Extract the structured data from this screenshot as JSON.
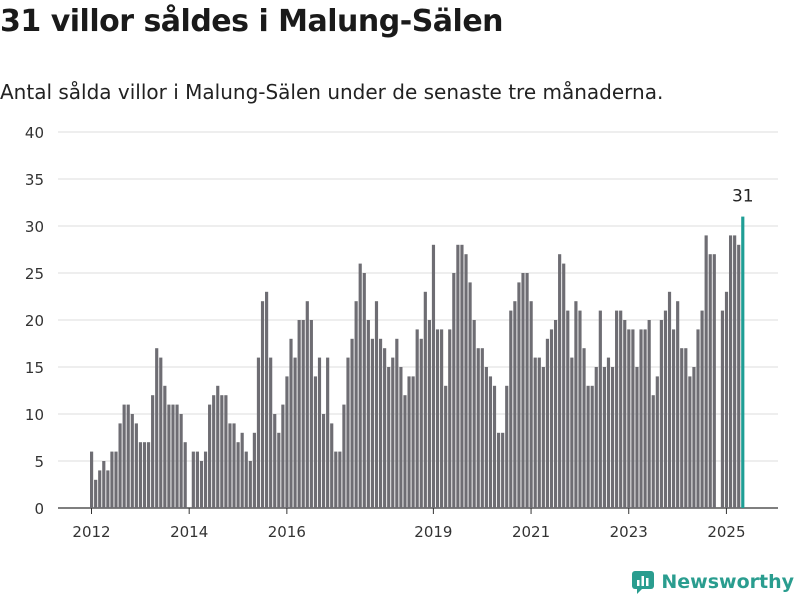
{
  "header": {
    "title": "31 villor såldes i Malung-Sälen",
    "subtitle": "Antal sålda villor i Malung-Sälen under de senaste tre månaderna."
  },
  "brand": {
    "name": "Newsworthy",
    "color": "#2a9d8f"
  },
  "colors": {
    "bar": "#6e6d73",
    "highlight": "#1f9e95",
    "grid": "#dddddd",
    "axis": "#333333"
  },
  "chart_data": {
    "type": "bar",
    "title": "31 villor såldes i Malung-Sälen",
    "subtitle": "Antal sålda villor i Malung-Sälen under de senaste tre månaderna.",
    "xlabel": "",
    "ylabel": "",
    "ylim": [
      0,
      40
    ],
    "yticks": [
      0,
      5,
      10,
      15,
      20,
      25,
      30,
      35,
      40
    ],
    "grid": true,
    "x_start": "2012-01",
    "frequency": "monthly",
    "xticks": [
      {
        "label": "2012",
        "month": "2012-01"
      },
      {
        "label": "2014",
        "month": "2014-01"
      },
      {
        "label": "2016",
        "month": "2016-01"
      },
      {
        "label": "2019",
        "month": "2019-01"
      },
      {
        "label": "2021",
        "month": "2021-01"
      },
      {
        "label": "2023",
        "month": "2023-01"
      },
      {
        "label": "2025",
        "month": "2025-01"
      }
    ],
    "values": [
      6,
      3,
      4,
      5,
      4,
      6,
      6,
      9,
      11,
      11,
      10,
      9,
      7,
      7,
      7,
      12,
      17,
      16,
      13,
      11,
      11,
      11,
      10,
      7,
      0,
      6,
      6,
      5,
      6,
      11,
      12,
      13,
      12,
      12,
      9,
      9,
      7,
      8,
      6,
      5,
      8,
      16,
      22,
      23,
      16,
      10,
      8,
      11,
      14,
      18,
      16,
      20,
      20,
      22,
      20,
      14,
      16,
      10,
      16,
      9,
      6,
      6,
      11,
      16,
      18,
      22,
      26,
      25,
      20,
      18,
      22,
      18,
      17,
      15,
      16,
      18,
      15,
      12,
      14,
      14,
      19,
      18,
      23,
      20,
      28,
      19,
      19,
      13,
      19,
      25,
      28,
      28,
      27,
      24,
      20,
      17,
      17,
      15,
      14,
      13,
      8,
      8,
      13,
      21,
      22,
      24,
      25,
      25,
      22,
      16,
      16,
      15,
      18,
      19,
      20,
      27,
      26,
      21,
      16,
      22,
      21,
      17,
      13,
      13,
      15,
      21,
      15,
      16,
      15,
      21,
      21,
      20,
      19,
      19,
      15,
      19,
      19,
      20,
      12,
      14,
      20,
      21,
      23,
      19,
      22,
      17,
      17,
      14,
      15,
      19,
      21,
      29,
      27,
      27,
      0,
      21,
      23,
      29,
      29,
      28,
      31
    ],
    "highlight_last": true,
    "annotations": [
      {
        "text": "31",
        "target": "last"
      }
    ]
  }
}
